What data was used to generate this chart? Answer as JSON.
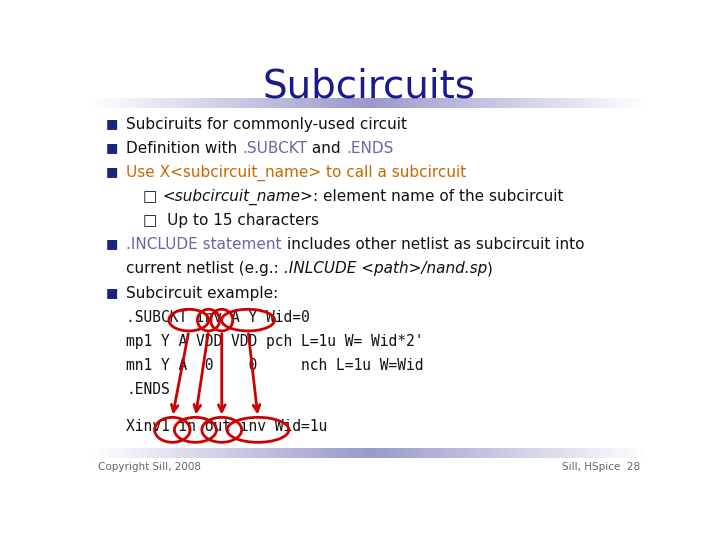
{
  "title": "Subcircuits",
  "title_color": "#1A1A8C",
  "title_fontsize": 28,
  "bg_color": "#FFFFFF",
  "header_bar_color_left": "#9999CC",
  "header_bar_color_right": "#FFFFFF",
  "footer_bar_color_left": "#9999CC",
  "footer_bar_color_right": "#FFFFFF",
  "bullet_color": "#1A237E",
  "green_color": "#6666AA",
  "orange_color": "#CC6600",
  "red_color": "#CC0000",
  "black_color": "#111111",
  "copyright_text": "Copyright Sill, 2008",
  "copyright_color": "#666666",
  "sill_text": "Sill, HSpice  28",
  "sill_color": "#666666",
  "content": [
    {
      "bullet": true,
      "parts": [
        {
          "text": "Subciruits for commonly-used circuit",
          "color": "#111111",
          "italic": false
        }
      ]
    },
    {
      "bullet": true,
      "parts": [
        {
          "text": "Definition with ",
          "color": "#111111",
          "italic": false
        },
        {
          "text": ".SUBCKT",
          "color": "#6666AA",
          "italic": false
        },
        {
          "text": " and ",
          "color": "#111111",
          "italic": false
        },
        {
          "text": ".ENDS",
          "color": "#6666AA",
          "italic": false
        }
      ]
    },
    {
      "bullet": true,
      "parts": [
        {
          "text": "Use X<subcircuit_name> to call a subcircuit",
          "color": "#CC6600",
          "italic": false
        }
      ]
    },
    {
      "bullet": false,
      "indent": 2,
      "parts": [
        {
          "text": "□ ",
          "color": "#111111",
          "italic": false
        },
        {
          "text": "<subcircuit_name>",
          "color": "#111111",
          "italic": true
        },
        {
          "text": ": element name of the subcircuit",
          "color": "#111111",
          "italic": false
        }
      ]
    },
    {
      "bullet": false,
      "indent": 2,
      "parts": [
        {
          "text": "□  Up to 15 characters",
          "color": "#111111",
          "italic": false
        }
      ]
    },
    {
      "bullet": true,
      "parts": [
        {
          "text": ".INCLUDE statement ",
          "color": "#6666AA",
          "italic": false
        },
        {
          "text": "includes other netlist as subcircuit into",
          "color": "#111111",
          "italic": false
        }
      ]
    },
    {
      "bullet": false,
      "indent": 1,
      "parts": [
        {
          "text": "current netlist (e.g.: ",
          "color": "#111111",
          "italic": false
        },
        {
          "text": ".INLCUDE <path>/nand.sp",
          "color": "#111111",
          "italic": true
        },
        {
          "text": ")",
          "color": "#111111",
          "italic": false
        }
      ]
    },
    {
      "bullet": true,
      "parts": [
        {
          "text": "Subcircuit example:",
          "color": "#111111",
          "italic": false
        }
      ]
    },
    {
      "bullet": false,
      "indent": 1,
      "monospace": true,
      "parts": [
        {
          "text": ".SUBCKT Inv A Y Wid=0",
          "color": "#111111",
          "italic": false
        }
      ]
    },
    {
      "bullet": false,
      "indent": 1,
      "monospace": true,
      "parts": [
        {
          "text": "mp1 Y A VDD VDD pch L=1u W= Wid*2'",
          "color": "#111111",
          "italic": false
        }
      ]
    },
    {
      "bullet": false,
      "indent": 1,
      "monospace": true,
      "parts": [
        {
          "text": "mn1 Y A  0    0     nch L=1u W=Wid",
          "color": "#111111",
          "italic": false
        }
      ]
    },
    {
      "bullet": false,
      "indent": 1,
      "monospace": true,
      "parts": [
        {
          "text": ".ENDS",
          "color": "#111111",
          "italic": false
        }
      ]
    },
    {
      "bullet": false,
      "indent": 0,
      "parts": []
    },
    {
      "bullet": false,
      "indent": 1,
      "monospace": true,
      "parts": [
        {
          "text": "Xinv1 in out inv Wid=1u",
          "color": "#111111",
          "italic": false
        }
      ]
    }
  ]
}
